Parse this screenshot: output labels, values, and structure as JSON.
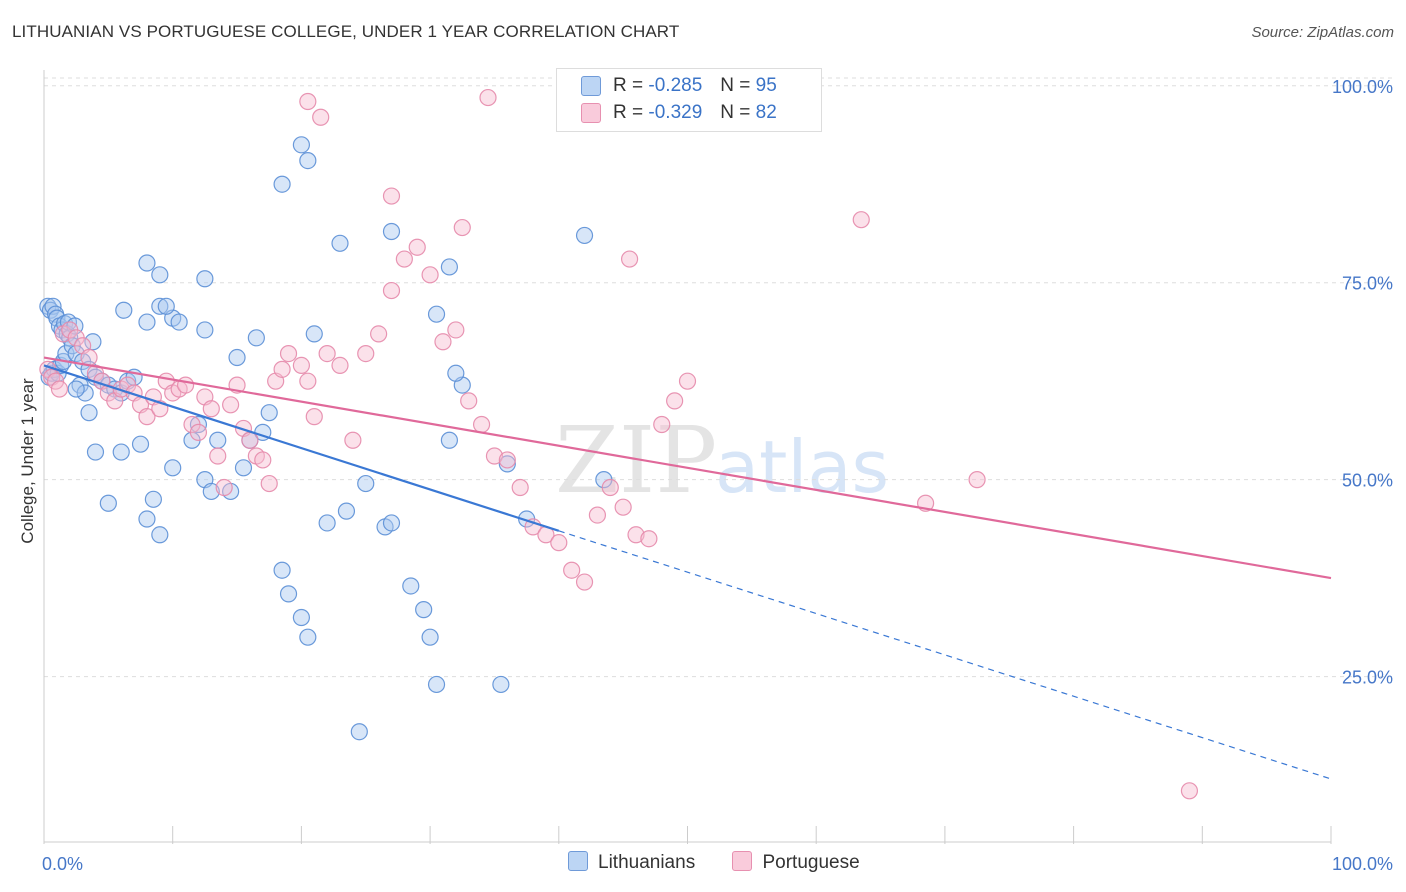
{
  "header": {
    "title": "LITHUANIAN VS PORTUGUESE COLLEGE, UNDER 1 YEAR CORRELATION CHART",
    "source": "Source: ZipAtlas.com"
  },
  "legend": {
    "rows": [
      {
        "r_label": "R =",
        "r_value": "-0.285",
        "n_label": "N =",
        "n_value": "95"
      },
      {
        "r_label": "R =",
        "r_value": "-0.329",
        "n_label": "N =",
        "n_value": "82"
      }
    ]
  },
  "watermark": {
    "zip": "ZIP",
    "atlas": "atlas"
  },
  "colors": {
    "blue_fill": "#a9c8f0",
    "blue_stroke": "#5b8fd6",
    "blue_line": "#3a78d4",
    "pink_fill": "#f6bcd0",
    "pink_stroke": "#e58aab",
    "pink_line": "#e0699a",
    "axis_text": "#4677c8",
    "grid": "#dddddd"
  },
  "chart_data": {
    "type": "scatter",
    "title": "LITHUANIAN VS PORTUGUESE COLLEGE, UNDER 1 YEAR CORRELATION CHART",
    "xlabel": "",
    "ylabel": "College, Under 1 year",
    "xlim": [
      0,
      100
    ],
    "ylim": [
      4,
      102
    ],
    "x_tick_labels": [
      "0.0%",
      "100.0%"
    ],
    "y_ticks": [
      25,
      50,
      75,
      100
    ],
    "y_tick_labels": [
      "25.0%",
      "50.0%",
      "75.0%",
      "100.0%"
    ],
    "grid": true,
    "legend_position": "top-center",
    "series": [
      {
        "name": "Lithuanians",
        "R": -0.285,
        "N": 95,
        "trend": {
          "x0": 0,
          "y0": 64.5,
          "x1": 40,
          "y1": 43.5,
          "dash_to_x": 100,
          "dash_to_y": 12.0
        },
        "points": [
          [
            0.3,
            72.0
          ],
          [
            0.5,
            71.5
          ],
          [
            0.7,
            72.0
          ],
          [
            0.9,
            71.0
          ],
          [
            1.0,
            70.5
          ],
          [
            1.2,
            69.5
          ],
          [
            1.4,
            69.0
          ],
          [
            1.6,
            69.8
          ],
          [
            1.8,
            68.5
          ],
          [
            2.0,
            68.0
          ],
          [
            0.4,
            63.0
          ],
          [
            0.6,
            63.5
          ],
          [
            0.8,
            64.0
          ],
          [
            1.1,
            63.5
          ],
          [
            1.3,
            64.5
          ],
          [
            1.5,
            65.0
          ],
          [
            1.7,
            66.0
          ],
          [
            2.2,
            67.0
          ],
          [
            2.5,
            66.0
          ],
          [
            3.0,
            65.0
          ],
          [
            3.5,
            64.0
          ],
          [
            4.0,
            63.0
          ],
          [
            4.5,
            62.5
          ],
          [
            5.0,
            62.0
          ],
          [
            5.5,
            61.5
          ],
          [
            6.0,
            61.0
          ],
          [
            6.5,
            62.5
          ],
          [
            7.0,
            63.0
          ],
          [
            2.8,
            62.0
          ],
          [
            3.2,
            61.0
          ],
          [
            1.9,
            70.0
          ],
          [
            2.4,
            69.5
          ],
          [
            3.8,
            67.5
          ],
          [
            6.2,
            71.5
          ],
          [
            8.0,
            70.0
          ],
          [
            9.0,
            72.0
          ],
          [
            10.0,
            70.5
          ],
          [
            12.5,
            69.0
          ],
          [
            15.0,
            65.5
          ],
          [
            16.5,
            68.0
          ],
          [
            20.0,
            92.5
          ],
          [
            20.5,
            90.5
          ],
          [
            18.5,
            87.5
          ],
          [
            8.0,
            77.5
          ],
          [
            9.0,
            76.0
          ],
          [
            9.5,
            72.0
          ],
          [
            10.5,
            70.0
          ],
          [
            12.5,
            75.5
          ],
          [
            21.0,
            68.5
          ],
          [
            23.0,
            80.0
          ],
          [
            27.0,
            81.5
          ],
          [
            31.5,
            77.0
          ],
          [
            42.0,
            81.0
          ],
          [
            30.5,
            71.0
          ],
          [
            32.5,
            62.0
          ],
          [
            32.0,
            63.5
          ],
          [
            31.5,
            55.0
          ],
          [
            36.0,
            52.0
          ],
          [
            37.5,
            45.0
          ],
          [
            43.5,
            50.0
          ],
          [
            2.5,
            61.5
          ],
          [
            3.5,
            58.5
          ],
          [
            4.0,
            53.5
          ],
          [
            5.0,
            47.0
          ],
          [
            6.0,
            53.5
          ],
          [
            7.5,
            54.5
          ],
          [
            8.5,
            47.5
          ],
          [
            8.0,
            45.0
          ],
          [
            9.0,
            43.0
          ],
          [
            10.0,
            51.5
          ],
          [
            11.5,
            55.0
          ],
          [
            12.0,
            57.0
          ],
          [
            12.5,
            50.0
          ],
          [
            13.0,
            48.5
          ],
          [
            13.5,
            55.0
          ],
          [
            14.5,
            48.5
          ],
          [
            15.5,
            51.5
          ],
          [
            16.0,
            55.0
          ],
          [
            17.0,
            56.0
          ],
          [
            17.5,
            58.5
          ],
          [
            18.5,
            38.5
          ],
          [
            19.0,
            35.5
          ],
          [
            20.0,
            32.5
          ],
          [
            20.5,
            30.0
          ],
          [
            22.0,
            44.5
          ],
          [
            23.5,
            46.0
          ],
          [
            25.0,
            49.5
          ],
          [
            26.5,
            44.0
          ],
          [
            27.0,
            44.5
          ],
          [
            28.5,
            36.5
          ],
          [
            29.5,
            33.5
          ],
          [
            30.0,
            30.0
          ],
          [
            30.5,
            24.0
          ],
          [
            35.5,
            24.0
          ],
          [
            24.5,
            18.0
          ]
        ]
      },
      {
        "name": "Portuguese",
        "R": -0.329,
        "N": 82,
        "trend": {
          "x0": 0,
          "y0": 65.5,
          "x1": 100,
          "y1": 37.5
        },
        "points": [
          [
            0.3,
            64.0
          ],
          [
            0.6,
            63.0
          ],
          [
            0.9,
            62.5
          ],
          [
            1.2,
            61.5
          ],
          [
            1.5,
            68.5
          ],
          [
            2.0,
            69.0
          ],
          [
            2.5,
            68.0
          ],
          [
            3.0,
            67.0
          ],
          [
            3.5,
            65.5
          ],
          [
            4.0,
            63.5
          ],
          [
            4.5,
            62.5
          ],
          [
            5.0,
            61.0
          ],
          [
            5.5,
            60.0
          ],
          [
            6.0,
            61.5
          ],
          [
            6.5,
            62.0
          ],
          [
            7.0,
            61.0
          ],
          [
            7.5,
            59.5
          ],
          [
            8.0,
            58.0
          ],
          [
            8.5,
            60.5
          ],
          [
            9.0,
            59.0
          ],
          [
            9.5,
            62.5
          ],
          [
            10.0,
            61.0
          ],
          [
            10.5,
            61.5
          ],
          [
            11.0,
            62.0
          ],
          [
            11.5,
            57.0
          ],
          [
            12.0,
            56.0
          ],
          [
            12.5,
            60.5
          ],
          [
            13.0,
            59.0
          ],
          [
            13.5,
            53.0
          ],
          [
            14.0,
            49.0
          ],
          [
            14.5,
            59.5
          ],
          [
            15.0,
            62.0
          ],
          [
            15.5,
            56.5
          ],
          [
            16.0,
            55.0
          ],
          [
            16.5,
            53.0
          ],
          [
            17.0,
            52.5
          ],
          [
            17.5,
            49.5
          ],
          [
            18.0,
            62.5
          ],
          [
            18.5,
            64.0
          ],
          [
            19.0,
            66.0
          ],
          [
            20.0,
            64.5
          ],
          [
            20.5,
            62.5
          ],
          [
            21.0,
            58.0
          ],
          [
            22.0,
            66.0
          ],
          [
            23.0,
            64.5
          ],
          [
            24.0,
            55.0
          ],
          [
            25.0,
            66.0
          ],
          [
            26.0,
            68.5
          ],
          [
            27.0,
            74.0
          ],
          [
            28.0,
            78.0
          ],
          [
            29.0,
            79.5
          ],
          [
            30.0,
            76.0
          ],
          [
            31.0,
            67.5
          ],
          [
            32.0,
            69.0
          ],
          [
            33.0,
            60.0
          ],
          [
            34.0,
            57.0
          ],
          [
            35.0,
            53.0
          ],
          [
            36.0,
            52.5
          ],
          [
            37.0,
            49.0
          ],
          [
            38.0,
            44.0
          ],
          [
            39.0,
            43.0
          ],
          [
            40.0,
            42.0
          ],
          [
            41.0,
            38.5
          ],
          [
            42.0,
            37.0
          ],
          [
            43.0,
            45.5
          ],
          [
            44.0,
            49.0
          ],
          [
            45.0,
            46.5
          ],
          [
            46.0,
            43.0
          ],
          [
            47.0,
            42.5
          ],
          [
            48.0,
            57.0
          ],
          [
            49.0,
            60.0
          ],
          [
            50.0,
            62.5
          ],
          [
            20.5,
            98.0
          ],
          [
            21.5,
            96.0
          ],
          [
            34.5,
            98.5
          ],
          [
            27.0,
            86.0
          ],
          [
            32.5,
            82.0
          ],
          [
            45.5,
            78.0
          ],
          [
            63.5,
            83.0
          ],
          [
            68.5,
            47.0
          ],
          [
            72.5,
            50.0
          ],
          [
            89.0,
            10.5
          ]
        ]
      }
    ]
  }
}
